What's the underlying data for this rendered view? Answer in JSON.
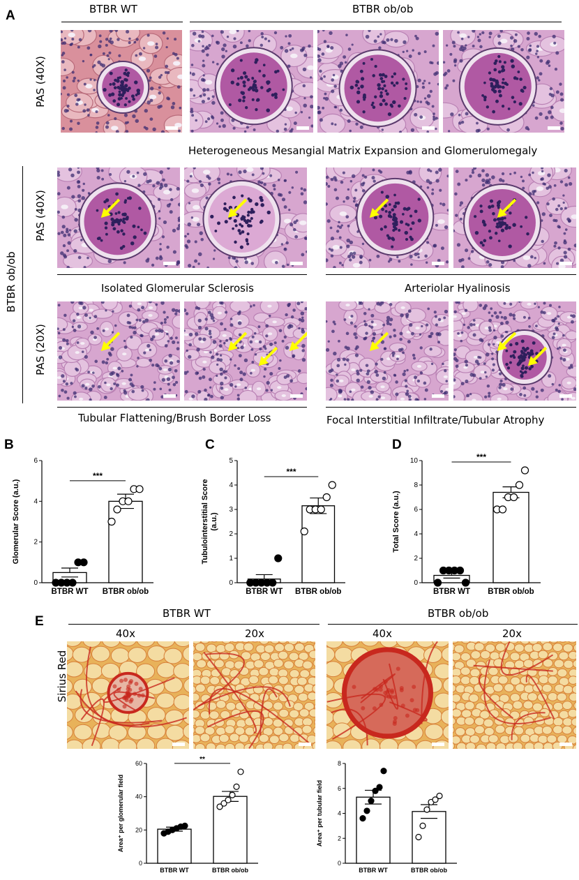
{
  "panel_A": {
    "letter": "A",
    "header_wt": "BTBR WT",
    "header_obob": "BTBR ob/ob",
    "side_label": "BTBR ob/ob",
    "row1_label": "PAS (40X)",
    "row2_label": "PAS (40X)",
    "row3_label": "PAS (20X)",
    "caption_row1": "Heterogeneous Mesangial Matrix Expansion and Glomerulomegaly",
    "caption_row2_left": "Isolated Glomerular Sclerosis",
    "caption_row2_right": "Arteriolar Hyalinosis",
    "caption_row3_left": "Tubular Flattening/Brush Border Loss",
    "caption_row3_right": "Focal Interstitial Infiltrate/Tubular Atrophy",
    "colors": {
      "pas_bg": "#d7a6cf",
      "pas_dark": "#a94a9a",
      "nuclei": "#3d2d72",
      "arrow": "#ffff00",
      "wt_bg": "#d9909c"
    }
  },
  "panel_E": {
    "letter": "E",
    "header_wt": "BTBR WT",
    "header_obob": "BTBR ob/ob",
    "mag_40": "40x",
    "mag_20": "20x",
    "stain_label": "Sirius Red",
    "colors": {
      "bg": "#e8b25a",
      "fiber": "#c8281e",
      "light": "#f4dca2"
    }
  },
  "chart_data": [
    {
      "id": "B",
      "letter": "B",
      "type": "bar",
      "categories": [
        "BTBR WT",
        "BTBR ob/ob"
      ],
      "values": [
        0.5,
        4.0
      ],
      "sem": [
        0.22,
        0.35
      ],
      "points": [
        [
          0,
          0,
          0,
          0,
          1,
          1
        ],
        [
          3,
          3.6,
          4,
          4,
          4.6,
          4.6
        ]
      ],
      "filled": [
        true,
        false
      ],
      "ylabel": "Glomerular Score (a.u.)",
      "ylim": [
        0,
        6
      ],
      "yticks": [
        0,
        2,
        4,
        6
      ],
      "significance": "***"
    },
    {
      "id": "C",
      "letter": "C",
      "type": "bar",
      "categories": [
        "BTBR WT",
        "BTBR ob/ob"
      ],
      "values": [
        0.15,
        3.15
      ],
      "sem": [
        0.18,
        0.32
      ],
      "points": [
        [
          0,
          0,
          0,
          0,
          0,
          1
        ],
        [
          2.1,
          3,
          3,
          3,
          3.5,
          4
        ]
      ],
      "filled": [
        true,
        false
      ],
      "ylabel": "Tubulointerstitial Score\n(a.u.)",
      "ylim": [
        0,
        5
      ],
      "yticks": [
        0,
        1,
        2,
        3,
        4,
        5
      ],
      "significance": "***"
    },
    {
      "id": "D",
      "letter": "D",
      "type": "bar",
      "categories": [
        "BTBR WT",
        "BTBR ob/ob"
      ],
      "values": [
        0.6,
        7.4
      ],
      "sem": [
        0.22,
        0.45
      ],
      "points": [
        [
          0,
          1,
          1,
          1,
          1,
          0
        ],
        [
          6,
          6,
          7,
          7,
          8,
          9.2
        ]
      ],
      "filled": [
        true,
        false
      ],
      "ylabel": "Total Score (a.u.)",
      "ylim": [
        0,
        10
      ],
      "yticks": [
        0,
        2,
        4,
        6,
        8,
        10
      ],
      "significance": "***"
    },
    {
      "id": "E1",
      "type": "bar",
      "categories": [
        "BTBR WT",
        "BTBR ob/ob"
      ],
      "values": [
        20.5,
        40.2
      ],
      "sem": [
        1.2,
        3.0
      ],
      "points": [
        [
          18,
          19,
          20,
          21,
          22,
          22.5
        ],
        [
          34,
          36,
          38,
          41,
          46,
          55
        ]
      ],
      "filled": [
        true,
        false
      ],
      "ylabel": "Area⁺ per glomerular field",
      "ylim": [
        0,
        60
      ],
      "yticks": [
        0,
        20,
        40,
        60
      ],
      "significance": "**"
    },
    {
      "id": "E2",
      "type": "bar",
      "categories": [
        "BTBR WT",
        "BTBR ob/ob"
      ],
      "values": [
        5.3,
        4.15
      ],
      "sem": [
        0.55,
        0.55
      ],
      "points": [
        [
          3.6,
          4.2,
          5.0,
          5.8,
          6.1,
          7.4
        ],
        [
          2.1,
          3.0,
          4.3,
          4.9,
          5.1,
          5.4
        ]
      ],
      "filled": [
        true,
        false
      ],
      "ylabel": "Area⁺ per tubular field",
      "ylim": [
        0,
        8
      ],
      "yticks": [
        0,
        2,
        4,
        6,
        8
      ],
      "significance": ""
    }
  ]
}
